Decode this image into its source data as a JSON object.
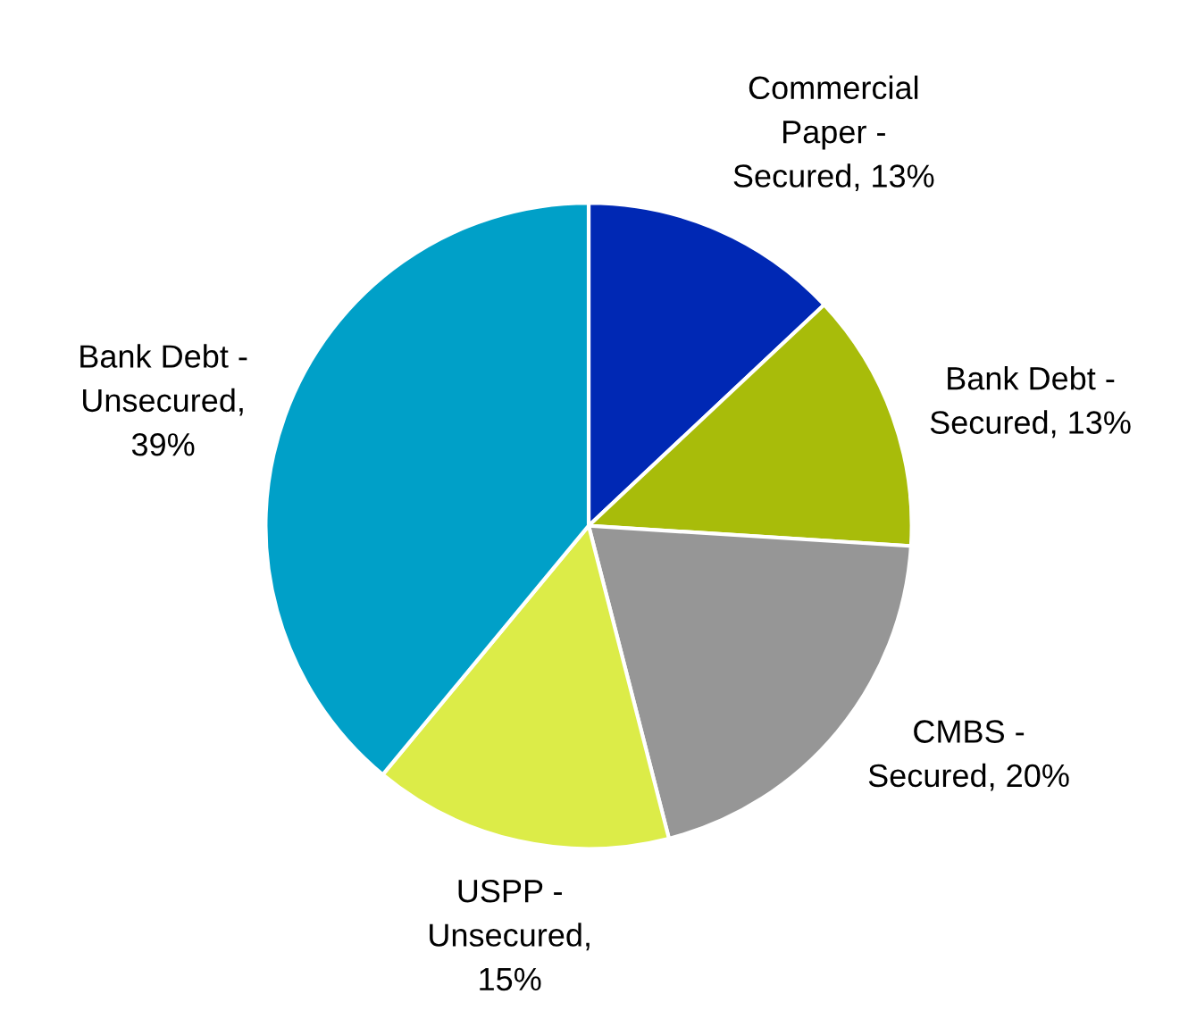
{
  "chart_data": {
    "type": "pie",
    "categories": [
      "Commercial Paper - Secured, 13%",
      "Bank Debt - Secured, 13%",
      "CMBS - Secured, 20%",
      "USPP - Unsecured, 15%",
      "Bank Debt - Unsecured, 39%"
    ],
    "values": [
      13,
      13,
      20,
      15,
      39
    ],
    "colors": [
      "#0028b4",
      "#a8bc0a",
      "#969696",
      "#dcec48",
      "#00a0c8"
    ]
  }
}
